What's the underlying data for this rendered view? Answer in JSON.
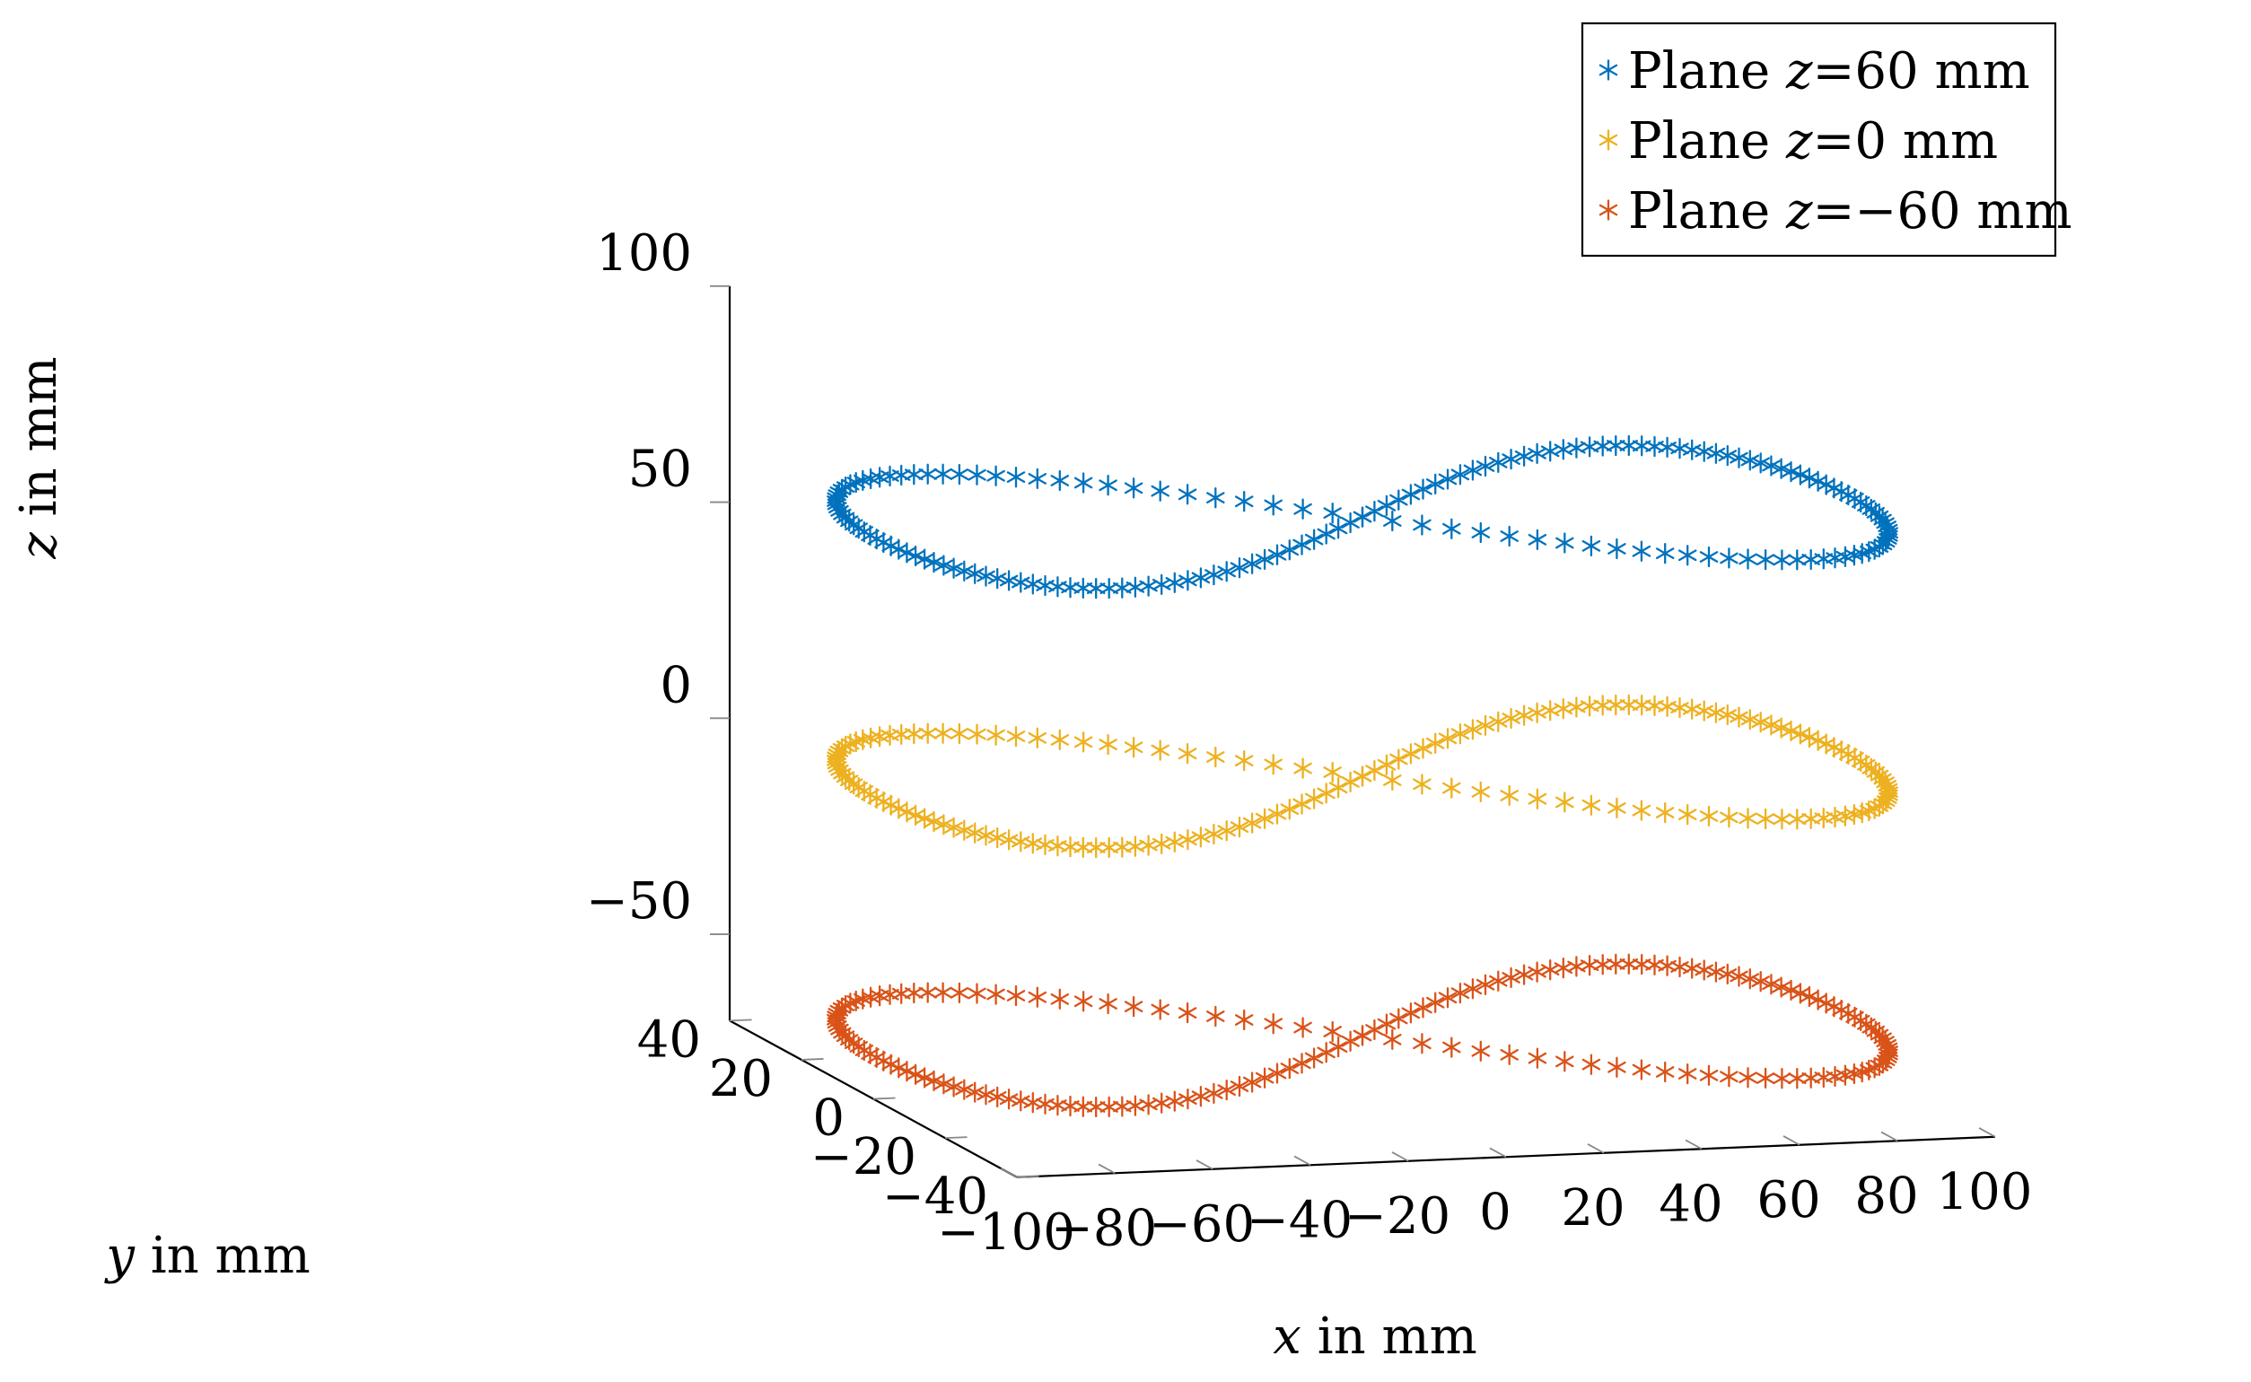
{
  "chart_data": {
    "type": "scatter3d",
    "title": "",
    "xlabel": {
      "var": "x",
      "unit": "in mm"
    },
    "ylabel": {
      "var": "y",
      "unit": "in mm"
    },
    "zlabel": {
      "var": "z",
      "unit": "in mm"
    },
    "xlim": [
      -100,
      100
    ],
    "ylim": [
      -40,
      40
    ],
    "zlim": [
      -70,
      100
    ],
    "xticks": [
      -100,
      -80,
      -60,
      -40,
      -20,
      0,
      20,
      40,
      60,
      80,
      100
    ],
    "yticks": [
      -40,
      -20,
      0,
      20,
      40
    ],
    "zticks": [
      -50,
      0,
      50,
      100
    ],
    "xtick_labels": [
      "−100",
      "−80",
      "−60",
      "−40",
      "−20",
      "0",
      "20",
      "40",
      "60",
      "80",
      "100"
    ],
    "ytick_labels": [
      "−40",
      "−20",
      "0",
      "20",
      "40"
    ],
    "ztick_labels": [
      "−50",
      "0",
      "50",
      "100"
    ],
    "marker": "asterisk",
    "trajectory": "figure-eight, x = 100·sin(t), y = 29·sin(2t)",
    "points_per_series": 170,
    "x_amplitude": 100,
    "y_amplitude": 29,
    "series": [
      {
        "name": "Plane z=60 mm",
        "label_prefix": "Plane ",
        "var": "z",
        "label_suffix": "=60 mm",
        "z": 60,
        "color": "#0072BD"
      },
      {
        "name": "Plane z=0 mm",
        "label_prefix": "Plane ",
        "var": "z",
        "label_suffix": "=0 mm",
        "z": 0,
        "color": "#EDB120"
      },
      {
        "name": "Plane z=−60 mm",
        "label_prefix": "Plane ",
        "var": "z",
        "label_suffix": "=−60 mm",
        "z": -60,
        "color": "#D95319"
      }
    ],
    "legend_position": "top-right",
    "grid": false
  }
}
